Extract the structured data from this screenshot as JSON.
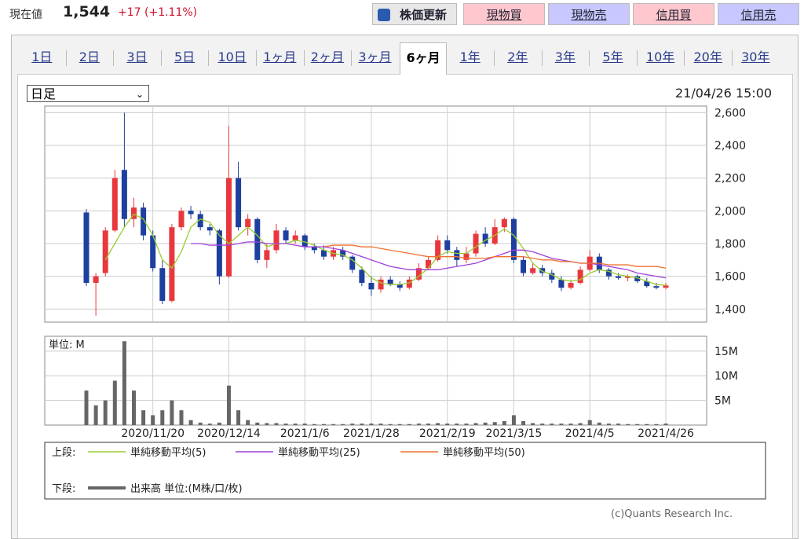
{
  "header": {
    "label": "現在値",
    "price": "1,544",
    "change": "+17",
    "change_pct": "(+1.11%)"
  },
  "buttons": [
    "株価更新",
    "現物買",
    "現物売",
    "信用買",
    "信用売"
  ],
  "tabs": [
    "1日",
    "2日",
    "3日",
    "5日",
    "10日",
    "1ヶ月",
    "2ヶ月",
    "3ヶ月",
    "6ヶ月",
    "1年",
    "2年",
    "3年",
    "5年",
    "10年",
    "20年",
    "30年"
  ],
  "active_tab": 8,
  "select": "日足",
  "timestamp": "21/04/26 15:00",
  "legend": {
    "upper": "上段:",
    "lower": "下段:"
  },
  "copyright": "(c)Quants Research Inc.",
  "chart_data": [
    {
      "type": "candlestick",
      "up_color": "#e8383d",
      "down_color": "#1d3f9e",
      "ylim": [
        1320,
        2640
      ],
      "yticks": [
        {
          "value": 1400,
          "label": "1,400"
        },
        {
          "value": 1600,
          "label": "1,600"
        },
        {
          "value": 1800,
          "label": "1,800"
        },
        {
          "value": 2000,
          "label": "2,000"
        },
        {
          "value": 2200,
          "label": "2,200"
        },
        {
          "value": 2400,
          "label": "2,400"
        },
        {
          "value": 2600,
          "label": "2,600"
        }
      ],
      "grid": true,
      "open": [
        1990,
        1560,
        1620,
        1880,
        2250,
        1950,
        2020,
        1850,
        1650,
        1450,
        1900,
        2000,
        1980,
        1900,
        1880,
        1600,
        2200,
        1900,
        1950,
        1700,
        1760,
        1880,
        1820,
        1850,
        1780,
        1760,
        1720,
        1760,
        1720,
        1640,
        1560,
        1520,
        1580,
        1550,
        1530,
        1580,
        1650,
        1700,
        1820,
        1760,
        1700,
        1740,
        1860,
        1800,
        1900,
        1950,
        1700,
        1620,
        1650,
        1620,
        1580,
        1530,
        1560,
        1640,
        1720,
        1640,
        1600,
        1590,
        1600,
        1570,
        1540,
        1530
      ],
      "high": [
        2010,
        1620,
        1900,
        2250,
        2600,
        2080,
        2050,
        1880,
        1700,
        1920,
        2020,
        2030,
        2000,
        1920,
        1890,
        2520,
        2300,
        1980,
        1960,
        1800,
        1920,
        1900,
        1880,
        1860,
        1800,
        1790,
        1780,
        1780,
        1730,
        1660,
        1600,
        1600,
        1600,
        1570,
        1600,
        1680,
        1720,
        1850,
        1850,
        1780,
        1780,
        1880,
        1900,
        1950,
        1960,
        1960,
        1720,
        1680,
        1670,
        1640,
        1600,
        1580,
        1660,
        1760,
        1740,
        1650,
        1620,
        1610,
        1610,
        1590,
        1560,
        1560
      ],
      "low": [
        1540,
        1360,
        1600,
        1870,
        1900,
        1900,
        1820,
        1630,
        1430,
        1440,
        1880,
        1950,
        1880,
        1850,
        1550,
        1590,
        1880,
        1850,
        1680,
        1650,
        1740,
        1800,
        1800,
        1760,
        1740,
        1700,
        1700,
        1700,
        1620,
        1540,
        1480,
        1500,
        1540,
        1510,
        1520,
        1570,
        1640,
        1690,
        1740,
        1660,
        1680,
        1720,
        1780,
        1790,
        1870,
        1680,
        1600,
        1610,
        1600,
        1560,
        1510,
        1520,
        1550,
        1630,
        1620,
        1580,
        1580,
        1570,
        1560,
        1530,
        1520,
        1520
      ],
      "close": [
        1560,
        1600,
        1880,
        2200,
        1950,
        2020,
        1850,
        1650,
        1450,
        1900,
        2000,
        1980,
        1900,
        1880,
        1600,
        2200,
        1900,
        1950,
        1700,
        1760,
        1880,
        1820,
        1850,
        1780,
        1760,
        1720,
        1760,
        1720,
        1640,
        1560,
        1520,
        1580,
        1550,
        1530,
        1580,
        1650,
        1700,
        1820,
        1760,
        1700,
        1740,
        1860,
        1800,
        1900,
        1950,
        1700,
        1620,
        1650,
        1620,
        1580,
        1530,
        1560,
        1640,
        1720,
        1640,
        1600,
        1590,
        1600,
        1570,
        1540,
        1530,
        1544
      ],
      "series": [
        {
          "name": "単純移動平均(5)",
          "color": "#9acd32",
          "values": [
            null,
            null,
            1700,
            1800,
            1900,
            1980,
            1950,
            1850,
            1700,
            1650,
            1750,
            1900,
            1950,
            1930,
            1850,
            1800,
            1850,
            1900,
            1850,
            1780,
            1800,
            1800,
            1820,
            1810,
            1790,
            1760,
            1740,
            1730,
            1700,
            1650,
            1590,
            1560,
            1550,
            1550,
            1560,
            1600,
            1650,
            1720,
            1750,
            1740,
            1740,
            1780,
            1820,
            1850,
            1890,
            1850,
            1770,
            1680,
            1630,
            1610,
            1580,
            1570,
            1580,
            1620,
            1640,
            1630,
            1610,
            1600,
            1590,
            1570,
            1550,
            1545
          ]
        },
        {
          "name": "単純移動平均(25)",
          "color": "#a040d8",
          "values": [
            null,
            null,
            null,
            null,
            null,
            null,
            null,
            null,
            null,
            null,
            null,
            1800,
            1800,
            1790,
            1790,
            1790,
            1800,
            1810,
            1810,
            1800,
            1800,
            1800,
            1790,
            1780,
            1780,
            1780,
            1770,
            1760,
            1740,
            1720,
            1700,
            1680,
            1660,
            1650,
            1640,
            1640,
            1640,
            1640,
            1650,
            1660,
            1670,
            1680,
            1700,
            1720,
            1740,
            1760,
            1760,
            1750,
            1730,
            1710,
            1700,
            1690,
            1680,
            1680,
            1670,
            1660,
            1650,
            1640,
            1620,
            1610,
            1600,
            1590
          ]
        },
        {
          "name": "単純移動平均(50)",
          "color": "#f07030",
          "values": [
            null,
            null,
            null,
            null,
            null,
            null,
            null,
            null,
            null,
            null,
            null,
            null,
            null,
            null,
            null,
            null,
            null,
            null,
            null,
            null,
            null,
            null,
            null,
            null,
            null,
            1780,
            1790,
            1790,
            1790,
            1780,
            1780,
            1770,
            1760,
            1750,
            1740,
            1730,
            1720,
            1720,
            1720,
            1720,
            1710,
            1710,
            1710,
            1720,
            1720,
            1720,
            1720,
            1710,
            1700,
            1700,
            1690,
            1690,
            1680,
            1680,
            1680,
            1670,
            1670,
            1670,
            1660,
            1660,
            1660,
            1650
          ]
        }
      ]
    },
    {
      "type": "bar",
      "y_label": "単位: M",
      "ylim": [
        0,
        18
      ],
      "yticks": [
        {
          "value": 5,
          "label": "5M"
        },
        {
          "value": 10,
          "label": "10M"
        },
        {
          "value": 15,
          "label": "15M"
        }
      ],
      "grid": true,
      "categories": [
        null,
        null,
        null,
        null,
        null,
        null,
        null,
        "2020/11/20",
        null,
        null,
        null,
        null,
        null,
        null,
        null,
        "2020/12/14",
        null,
        null,
        null,
        null,
        null,
        null,
        null,
        "2021/1/6",
        null,
        null,
        null,
        null,
        null,
        null,
        "2021/1/28",
        null,
        null,
        null,
        null,
        null,
        null,
        null,
        "2021/2/19",
        null,
        null,
        null,
        null,
        null,
        null,
        "2021/3/15",
        null,
        null,
        null,
        null,
        null,
        null,
        null,
        "2021/4/5",
        null,
        null,
        null,
        null,
        null,
        null,
        null,
        "2021/4/26"
      ],
      "series": [
        {
          "name": "出来高 単位:(M株/口/枚)",
          "color": "#666666",
          "values": [
            7,
            4,
            5,
            9,
            17,
            7,
            3,
            2,
            3,
            5,
            3,
            1,
            0.5,
            0.3,
            0.5,
            8,
            3,
            1,
            0.5,
            0.4,
            0.4,
            0.3,
            0.3,
            0.3,
            0.2,
            0.2,
            0.2,
            0.2,
            0.3,
            0.3,
            0.3,
            0.3,
            0.2,
            0.2,
            0.2,
            0.3,
            0.3,
            0.4,
            0.3,
            0.3,
            0.3,
            0.4,
            0.5,
            0.6,
            0.8,
            2,
            0.8,
            0.4,
            0.3,
            0.3,
            0.3,
            0.3,
            0.4,
            1,
            0.5,
            0.3,
            0.3,
            0.2,
            0.2,
            0.2,
            0.2,
            0.3
          ]
        }
      ]
    }
  ]
}
